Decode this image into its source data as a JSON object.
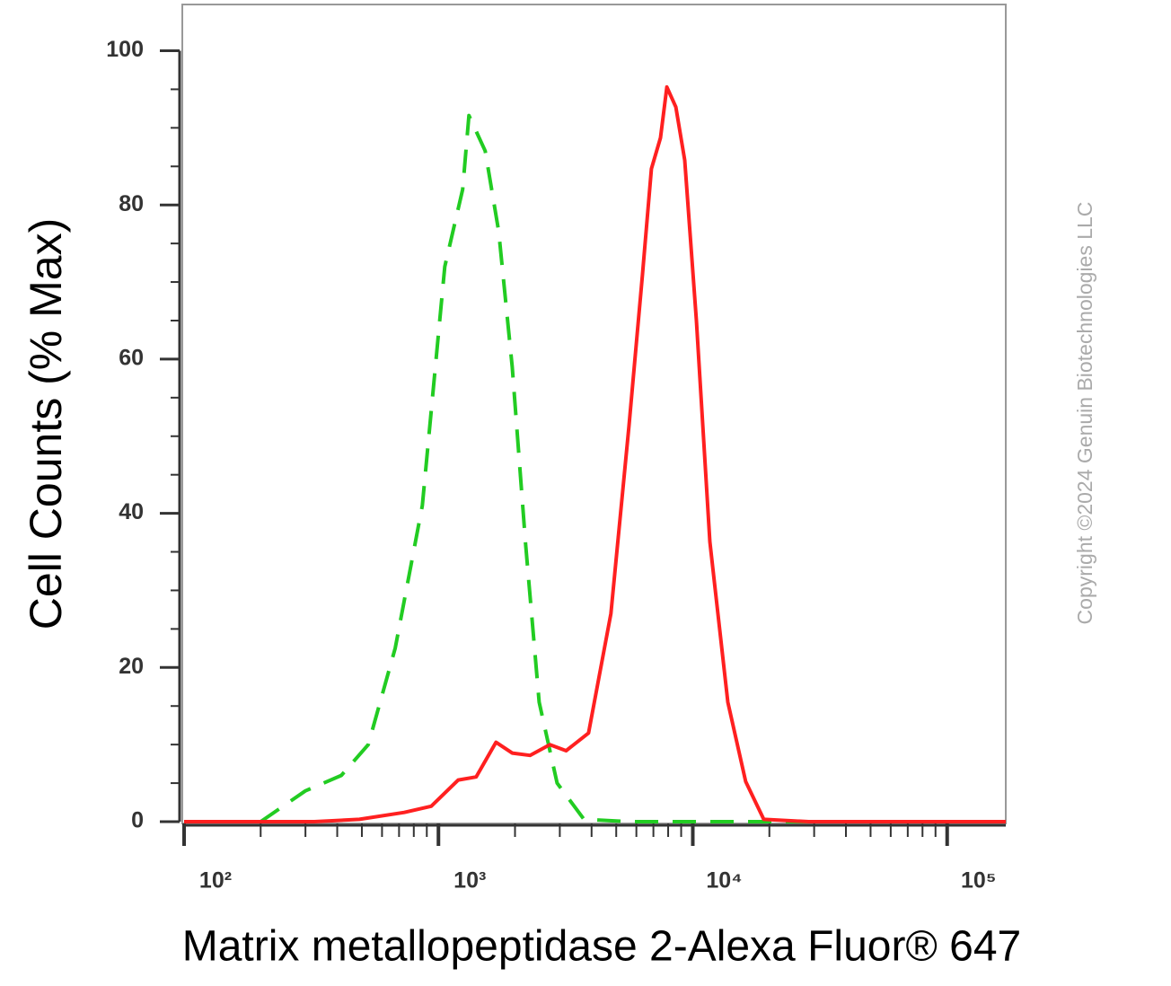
{
  "chart_data": {
    "type": "line",
    "x_label": "Matrix metallopeptidase 2-Alexa Fluor® 647",
    "y_label": "Cell Counts (% Max)",
    "annotation": "Copyright ©2024 Genuin Biotechnologies LLC",
    "x_log_scale": true,
    "xlim": [
      100,
      170000
    ],
    "ylim": [
      0,
      106
    ],
    "xticks": [
      {
        "value": 100,
        "label": "10²"
      },
      {
        "value": 1000,
        "label": "10³"
      },
      {
        "value": 10000,
        "label": "10⁴"
      },
      {
        "value": 100000,
        "label": "10⁵"
      }
    ],
    "x_minor_ticks": [
      200,
      300,
      400,
      500,
      600,
      700,
      800,
      900,
      2000,
      3000,
      4000,
      5000,
      6000,
      7000,
      8000,
      9000,
      20000,
      30000,
      40000,
      50000,
      60000,
      70000,
      80000,
      90000
    ],
    "yticks": [
      0,
      20,
      40,
      60,
      80,
      100
    ],
    "y_minor_ticks": [
      5,
      10,
      15,
      25,
      30,
      35,
      45,
      50,
      55,
      65,
      70,
      75,
      85,
      90,
      95
    ],
    "series": [
      {
        "color": "#22cc22",
        "dashed": true,
        "x": [
          100,
          200,
          300,
          415,
          530,
          676,
          864,
          1059,
          1245,
          1318,
          1527,
          1725,
          1950,
          2202,
          2488,
          2927,
          3735,
          5610,
          170000
        ],
        "values": [
          0,
          0,
          4,
          6,
          10,
          22.5,
          41,
          72,
          82,
          91.6,
          87,
          76.6,
          59,
          36,
          15.5,
          5,
          0.3,
          0,
          0
        ]
      },
      {
        "color": "#ff2020",
        "dashed": false,
        "x": [
          100,
          325,
          489,
          734,
          937,
          1196,
          1407,
          1683,
          1950,
          2291,
          2742,
          3177,
          3891,
          4766,
          5610,
          6339,
          6873,
          7462,
          7907,
          8577,
          9296,
          10330,
          11670,
          13730,
          16150,
          19010,
          28560,
          170000
        ],
        "values": [
          0,
          0,
          0.3,
          1.2,
          2,
          5.4,
          5.8,
          10.3,
          8.9,
          8.6,
          10,
          9.2,
          11.5,
          27,
          51.3,
          70.9,
          84.7,
          88.7,
          95.3,
          92.7,
          85.8,
          65,
          36.3,
          15.5,
          5.2,
          0.3,
          0,
          0
        ]
      }
    ]
  }
}
